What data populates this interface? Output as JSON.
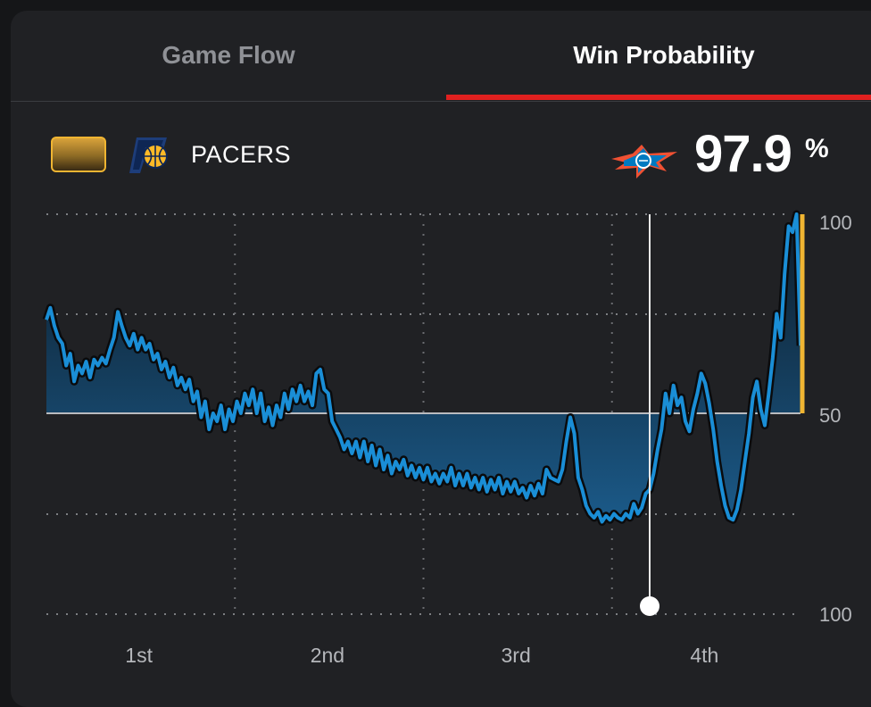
{
  "tabs": {
    "game_flow": "Game Flow",
    "win_probability": "Win Probability"
  },
  "header": {
    "team_name": "PACERS",
    "team_color": "#f0b532",
    "leader_logo": "okc-thunder-logo",
    "probability_value": "97.9",
    "probability_unit": "%"
  },
  "chart_data": {
    "type": "area",
    "x_ticks": [
      "1st",
      "2nd",
      "3rd",
      "4th"
    ],
    "y_ticks": [
      "100",
      "50",
      "100"
    ],
    "ylim": [
      0,
      100
    ],
    "grid": true,
    "colors": {
      "line": "#1a8ed6",
      "area_top": "#1b5077",
      "area_bottom": "#0b1b29",
      "baseline": "#b9bbbf",
      "pacers_line": "#f0b532"
    },
    "series": [
      {
        "values": [
          73.5,
          76.5,
          72,
          69,
          67.5,
          62,
          65,
          58,
          62,
          60,
          63,
          59,
          63.5,
          62,
          64,
          62.5,
          66,
          69,
          75.5,
          72,
          69,
          67,
          70,
          66,
          69,
          66,
          67.5,
          63.5,
          65,
          61,
          63,
          59,
          61.5,
          57,
          59,
          56,
          58.5,
          53,
          55.5,
          49,
          53,
          46,
          50,
          48,
          52,
          46,
          51,
          48,
          53,
          50,
          55,
          52,
          56,
          50,
          55,
          48,
          51.5,
          47,
          52,
          49,
          55,
          51,
          56,
          53,
          57,
          53,
          55.5,
          52,
          60,
          61,
          56,
          55,
          48,
          46,
          44,
          41,
          43,
          40,
          43,
          39,
          43,
          38,
          42,
          37,
          41,
          36,
          39.5,
          35,
          38,
          36,
          38.5,
          34.5,
          37,
          34,
          36.5,
          33.5,
          36.5,
          33,
          35,
          32.5,
          35,
          33,
          36.5,
          32,
          35,
          32,
          35,
          31.5,
          34,
          31,
          34,
          30.5,
          33.5,
          31,
          34,
          30,
          33,
          30.5,
          33,
          30,
          31.5,
          29,
          32,
          29.5,
          32.5,
          30,
          36,
          34,
          33.5,
          33,
          36,
          43,
          49,
          45,
          34,
          31,
          27,
          25,
          24,
          25.5,
          23,
          24.5,
          23.5,
          25,
          24,
          23.5,
          25,
          24,
          27.5,
          25,
          26.5,
          30,
          31,
          35,
          41,
          46,
          55,
          50,
          57,
          52,
          54,
          48,
          45.5,
          51,
          55,
          60,
          57.5,
          52.5,
          46,
          38,
          32,
          27,
          24,
          23.5,
          26,
          31,
          38,
          45,
          54,
          58,
          51,
          47,
          55,
          64,
          75,
          69,
          85,
          97,
          95.5,
          100,
          67
        ]
      },
      {
        "name": "PACERS",
        "values": [
          100
        ]
      }
    ],
    "hover_marker": {
      "quarter": "4th"
    }
  }
}
